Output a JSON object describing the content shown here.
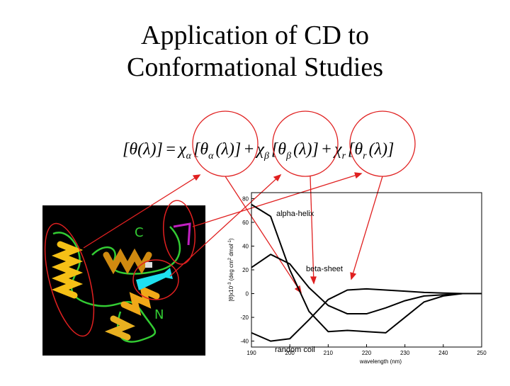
{
  "slide": {
    "title": [
      "Application of CD to",
      "Conformational Studies"
    ],
    "equation": [
      {
        "text": "[θ(λ)]"
      },
      {
        "text": "="
      },
      {
        "text": "χ",
        "sub": "α"
      },
      {
        "text": "[θ",
        "sub": "α"
      },
      {
        "text": "(λ)]"
      },
      {
        "text": "+"
      },
      {
        "text": "χ",
        "sub": "β"
      },
      {
        "text": "[θ",
        "sub": "β"
      },
      {
        "text": "(λ)]"
      },
      {
        "text": "+"
      },
      {
        "text": "χ",
        "sub": "r"
      },
      {
        "text": "[θ",
        "sub": "r"
      },
      {
        "text": "(λ)]"
      }
    ],
    "protein_labels": [
      "C",
      "N"
    ]
  },
  "chart_data": {
    "type": "line",
    "x": [
      190,
      195,
      200,
      205,
      210,
      215,
      220,
      225,
      230,
      235,
      240,
      245,
      250
    ],
    "series": [
      {
        "name": "alpha-helix",
        "color": "#000000",
        "values": [
          75,
          65,
          20,
          -15,
          -32,
          -31,
          -32,
          -33,
          -20,
          -7,
          -2,
          0,
          0
        ]
      },
      {
        "name": "beta-sheet",
        "color": "#000000",
        "values": [
          22,
          33,
          25,
          5,
          -10,
          -17,
          -17,
          -12,
          -6,
          -2,
          -1,
          0,
          0
        ]
      },
      {
        "name": "random coil",
        "color": "#000000",
        "values": [
          -33,
          -40,
          -38,
          -22,
          -5,
          3,
          4,
          3,
          2,
          1,
          0.5,
          0,
          0
        ]
      }
    ],
    "xlabel": "wavelength  (nm)",
    "ylabel": [
      {
        "text": "[θ]x10"
      },
      {
        "text": "-3",
        "sup": true
      },
      {
        "text": "  (deg cm"
      },
      {
        "text": "2",
        "sup": true
      },
      {
        "text": " dmol"
      },
      {
        "text": "-1",
        "sup": true
      },
      {
        "text": ")"
      }
    ],
    "xlim": [
      190,
      250
    ],
    "ylim": [
      -45,
      85
    ],
    "xticks": [
      190,
      200,
      210,
      220,
      230,
      240,
      250
    ],
    "yticks": [
      -40,
      -20,
      0,
      20,
      40,
      60,
      80
    ]
  }
}
